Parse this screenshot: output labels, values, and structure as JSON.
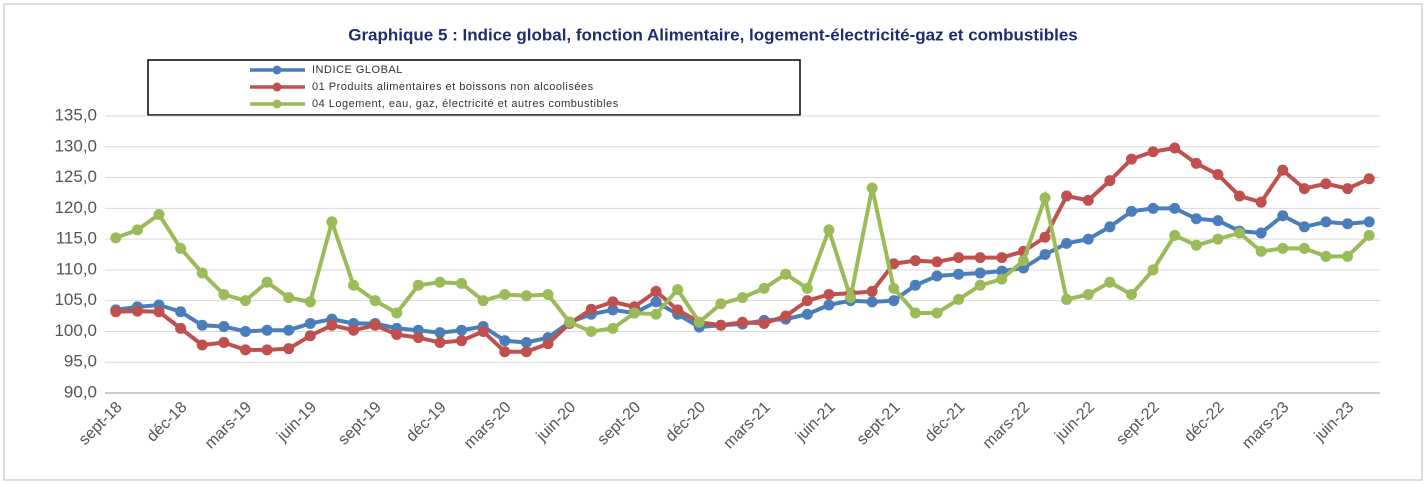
{
  "chart_data": {
    "type": "line",
    "title": "Graphique 5 : Indice global, fonction Alimentaire, logement-électricité-gaz et combustibles",
    "categories": [
      "sept-18",
      null,
      null,
      "déc-18",
      null,
      null,
      "mars-19",
      null,
      null,
      "juin-19",
      null,
      null,
      "sept-19",
      null,
      null,
      "déc-19",
      null,
      null,
      "mars-20",
      null,
      null,
      "juin-20",
      null,
      null,
      "sept-20",
      null,
      null,
      "déc-20",
      null,
      null,
      "mars-21",
      null,
      null,
      "juin-21",
      null,
      null,
      "sept-21",
      null,
      null,
      "déc-21",
      null,
      null,
      "mars-22",
      null,
      null,
      "juin-22",
      null,
      null,
      "sept-22",
      null,
      null,
      "déc-22",
      null,
      null,
      "mars-23",
      null,
      null,
      "juin-23",
      null
    ],
    "series": [
      {
        "name": "INDICE  GLOBAL",
        "color": "#4a7ebb",
        "values": [
          103.5,
          104,
          104.3,
          103.2,
          101,
          100.8,
          100,
          100.2,
          100.2,
          101.3,
          102,
          101.3,
          101.3,
          100.5,
          100.2,
          99.8,
          100.2,
          100.8,
          98.5,
          98.2,
          99,
          101.5,
          102.8,
          103.5,
          103,
          104.8,
          102.8,
          100.7,
          101,
          101.2,
          101.8,
          102,
          102.8,
          104.3,
          105,
          104.8,
          105,
          107.5,
          109,
          109.3,
          109.5,
          109.8,
          110.3,
          112.5,
          114.3,
          115,
          117,
          119.5,
          120,
          120,
          118.3,
          118,
          116.3,
          116,
          118.8,
          117,
          117.8,
          117.5,
          117.8
        ]
      },
      {
        "name": "01 Produits alimentaires et boissons non alcoolisées",
        "color": "#c0504d",
        "values": [
          103.2,
          103.3,
          103.2,
          100.5,
          97.8,
          98.2,
          97,
          97,
          97.2,
          99.3,
          101,
          100.2,
          101,
          99.5,
          99,
          98.2,
          98.5,
          100,
          96.7,
          96.7,
          98,
          101.3,
          103.6,
          104.8,
          104,
          106.5,
          103.5,
          101.5,
          101,
          101.5,
          101.3,
          102.5,
          105,
          106,
          106.2,
          106.5,
          111,
          111.5,
          111.3,
          112,
          112,
          112,
          113,
          115.3,
          122,
          121.3,
          124.5,
          128,
          129.2,
          129.8,
          127.3,
          125.5,
          122,
          121,
          126.2,
          123.2,
          124,
          123.2,
          124.8
        ]
      },
      {
        "name": "04 Logement, eau, gaz, électricité et autres combustibles",
        "color": "#9bbb59",
        "values": [
          115.2,
          116.5,
          119,
          113.5,
          109.5,
          106,
          105,
          108,
          105.5,
          104.8,
          117.8,
          107.5,
          105,
          103,
          107.5,
          108,
          107.8,
          105,
          106,
          105.8,
          106,
          101.5,
          100,
          100.5,
          103,
          102.8,
          106.8,
          101.5,
          104.5,
          105.5,
          107,
          109.3,
          107,
          116.5,
          105.5,
          123.3,
          107,
          103,
          103,
          105.2,
          107.5,
          108.5,
          111.5,
          121.7,
          105.2,
          106,
          108,
          106,
          110,
          115.6,
          114,
          115,
          116,
          113,
          113.5,
          113.5,
          112.2,
          112.2,
          115.6
        ]
      }
    ],
    "ylim": [
      90,
      135
    ],
    "yticks": [
      {
        "value": 90,
        "label": "90,0"
      },
      {
        "value": 95,
        "label": "95,0"
      },
      {
        "value": 100,
        "label": "100,0"
      },
      {
        "value": 105,
        "label": "105,0"
      },
      {
        "value": 110,
        "label": "110,0"
      },
      {
        "value": 115,
        "label": "115,0"
      },
      {
        "value": 120,
        "label": "120,0"
      },
      {
        "value": 125,
        "label": "125,0"
      },
      {
        "value": 130,
        "label": "130,0"
      },
      {
        "value": 135,
        "label": "135,0"
      }
    ],
    "grid": true
  }
}
